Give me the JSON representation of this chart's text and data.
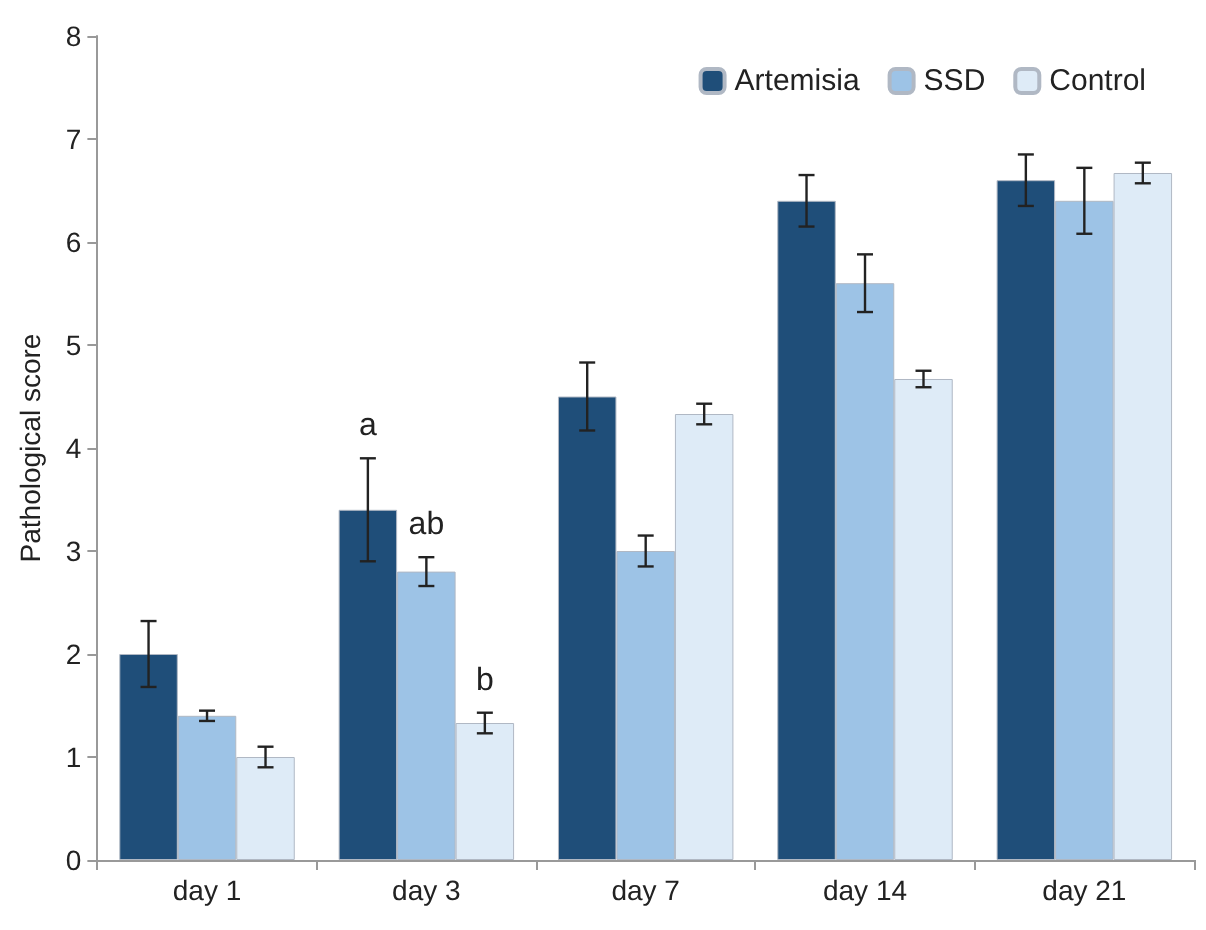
{
  "chart_data": {
    "type": "bar",
    "ylabel": "Pathological score",
    "categories": [
      "day 1",
      "day 3",
      "day 7",
      "day 14",
      "day 21"
    ],
    "series": [
      {
        "name": "Artemisia",
        "color": "#1f4e79",
        "values": [
          2.0,
          3.4,
          4.5,
          6.4,
          6.6
        ],
        "errors": [
          0.32,
          0.5,
          0.33,
          0.25,
          0.25
        ]
      },
      {
        "name": "SSD",
        "color": "#9dc3e6",
        "values": [
          1.4,
          2.8,
          3.0,
          5.6,
          6.4
        ],
        "errors": [
          0.05,
          0.14,
          0.15,
          0.28,
          0.32
        ]
      },
      {
        "name": "Control",
        "color": "#deebf7",
        "values": [
          1.0,
          1.33,
          4.33,
          4.67,
          6.67
        ],
        "errors": [
          0.1,
          0.1,
          0.1,
          0.08,
          0.1
        ]
      }
    ],
    "annotations": [
      "a",
      "ab",
      "b"
    ],
    "ylim": [
      0,
      8
    ],
    "yticks": [
      0,
      1,
      2,
      3,
      4,
      5,
      6,
      7,
      8
    ],
    "grid": false,
    "legend": "top right"
  }
}
